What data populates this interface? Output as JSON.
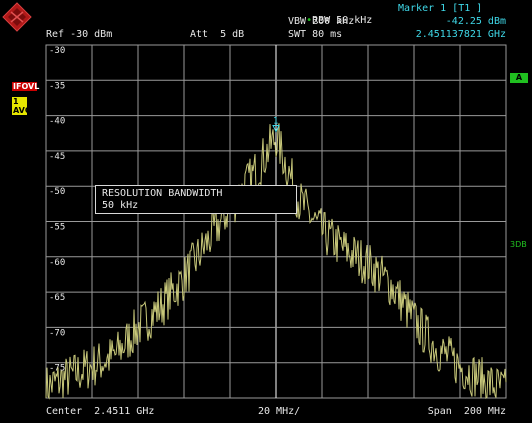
{
  "header": {
    "ref_level": "Ref -30 dBm",
    "attenuation": "Att  5 dB",
    "rbw": "RBW 50 kHz",
    "vbw": "VBW 200 kHz",
    "swt": "SWT 80 ms",
    "marker_title": "Marker 1 [T1 ]",
    "marker_level": "-42.25 dBm",
    "marker_freq": "2.451137821 GHz"
  },
  "side_labels": {
    "overload": "IFOVL",
    "trace_mode": "1 SA",
    "detector": "AVG",
    "right_top": "A",
    "right_mid": "3DB"
  },
  "y_axis": {
    "ticks": [
      "-30",
      "-35",
      "-40",
      "-45",
      "-50",
      "-55",
      "-60",
      "-65",
      "-70",
      "-75",
      "-80"
    ]
  },
  "footer": {
    "center": "Center  2.4511 GHz",
    "per_div": "20 MHz/",
    "span": "Span  200 MHz"
  },
  "annotation": {
    "title": "RESOLUTION BANDWIDTH",
    "value": "50 kHz"
  },
  "marker": {
    "label": "1",
    "level_dbm": -42.25,
    "freq_offset_divisions": 5.0
  },
  "trace_profile": [
    [
      0.0,
      -78.5
    ],
    [
      0.5,
      -77
    ],
    [
      1.0,
      -75.5
    ],
    [
      1.5,
      -74
    ],
    [
      2.0,
      -70
    ],
    [
      2.5,
      -67
    ],
    [
      3.0,
      -63
    ],
    [
      3.5,
      -58
    ],
    [
      4.0,
      -53
    ],
    [
      4.5,
      -48.5
    ],
    [
      5.0,
      -43
    ],
    [
      5.5,
      -52
    ],
    [
      6.0,
      -56.5
    ],
    [
      6.5,
      -59
    ],
    [
      7.0,
      -61
    ],
    [
      7.5,
      -64
    ],
    [
      8.0,
      -69
    ],
    [
      8.5,
      -73
    ],
    [
      9.0,
      -75.5
    ],
    [
      9.5,
      -77.5
    ],
    [
      10.0,
      -79
    ]
  ],
  "colors": {
    "background": "#000000",
    "grid": "#9a9a9a",
    "trace": "#c8c87a",
    "text": "#e8e8e8",
    "cyan": "#3fd8e8",
    "center_line": "#ffffff"
  },
  "logo_icon": "rohde-schwarz-diamond-icon"
}
